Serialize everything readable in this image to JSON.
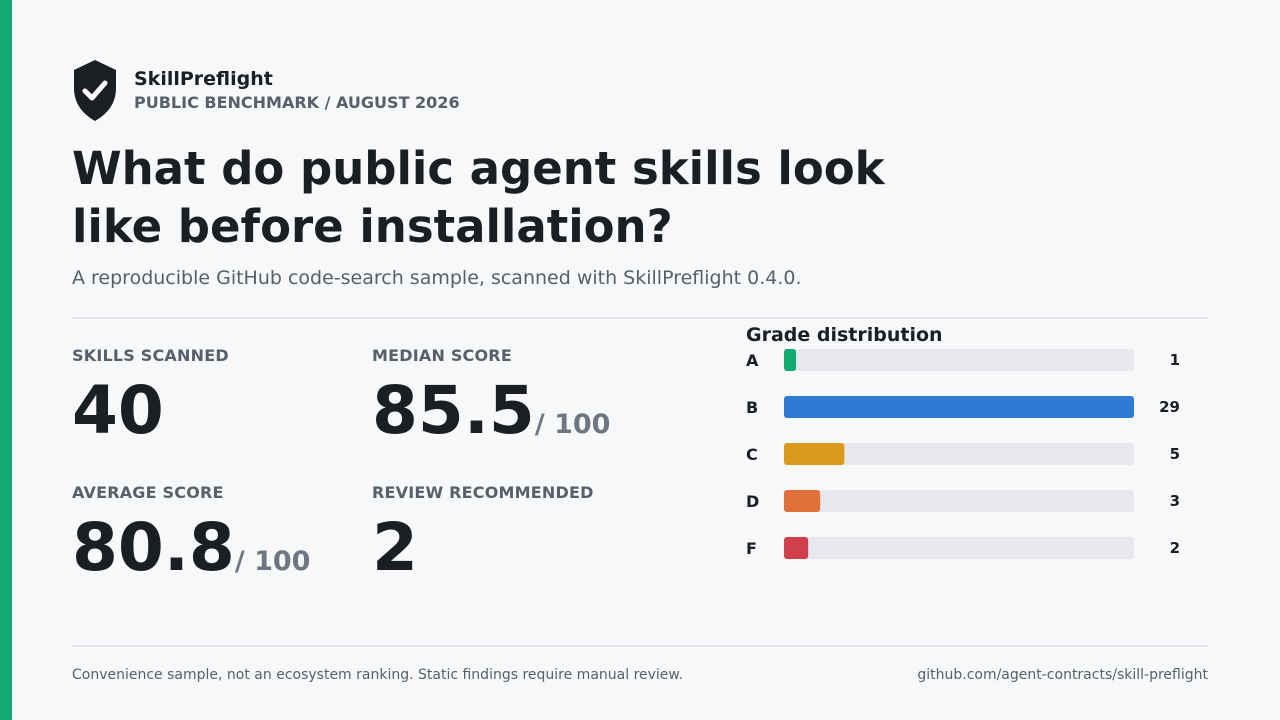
{
  "brand": {
    "name": "SkillPreflight",
    "subtitle": "PUBLIC BENCHMARK / AUGUST 2026",
    "logo_icon": "shield-check-icon"
  },
  "headline": "What do public agent skills look like before installation?",
  "subheadline": "A reproducible GitHub code-search sample, scanned with SkillPreflight 0.4.0.",
  "stats": {
    "skills_scanned": {
      "label": "SKILLS SCANNED",
      "value": "40"
    },
    "median_score": {
      "label": "MEDIAN SCORE",
      "value": "85.5",
      "suffix": "/ 100"
    },
    "average_score": {
      "label": "AVERAGE SCORE",
      "value": "80.8",
      "suffix": "/ 100"
    },
    "review_recommended": {
      "label": "REVIEW RECOMMENDED",
      "value": "2"
    }
  },
  "chart_data": {
    "type": "bar",
    "orientation": "horizontal",
    "title": "Grade distribution",
    "categories": [
      "A",
      "B",
      "C",
      "D",
      "F"
    ],
    "values": [
      1,
      29,
      5,
      3,
      2
    ],
    "xlim": [
      0,
      29
    ],
    "colors": [
      "#14a872",
      "#2f7bd3",
      "#d99a1b",
      "#e2703a",
      "#d13f4c"
    ],
    "track_color": "#e6e8ec",
    "grid": false
  },
  "footer": {
    "note": "Convenience sample, not an ecosystem ranking. Static findings require manual review.",
    "link": "github.com/agent-contracts/skill-preflight"
  }
}
